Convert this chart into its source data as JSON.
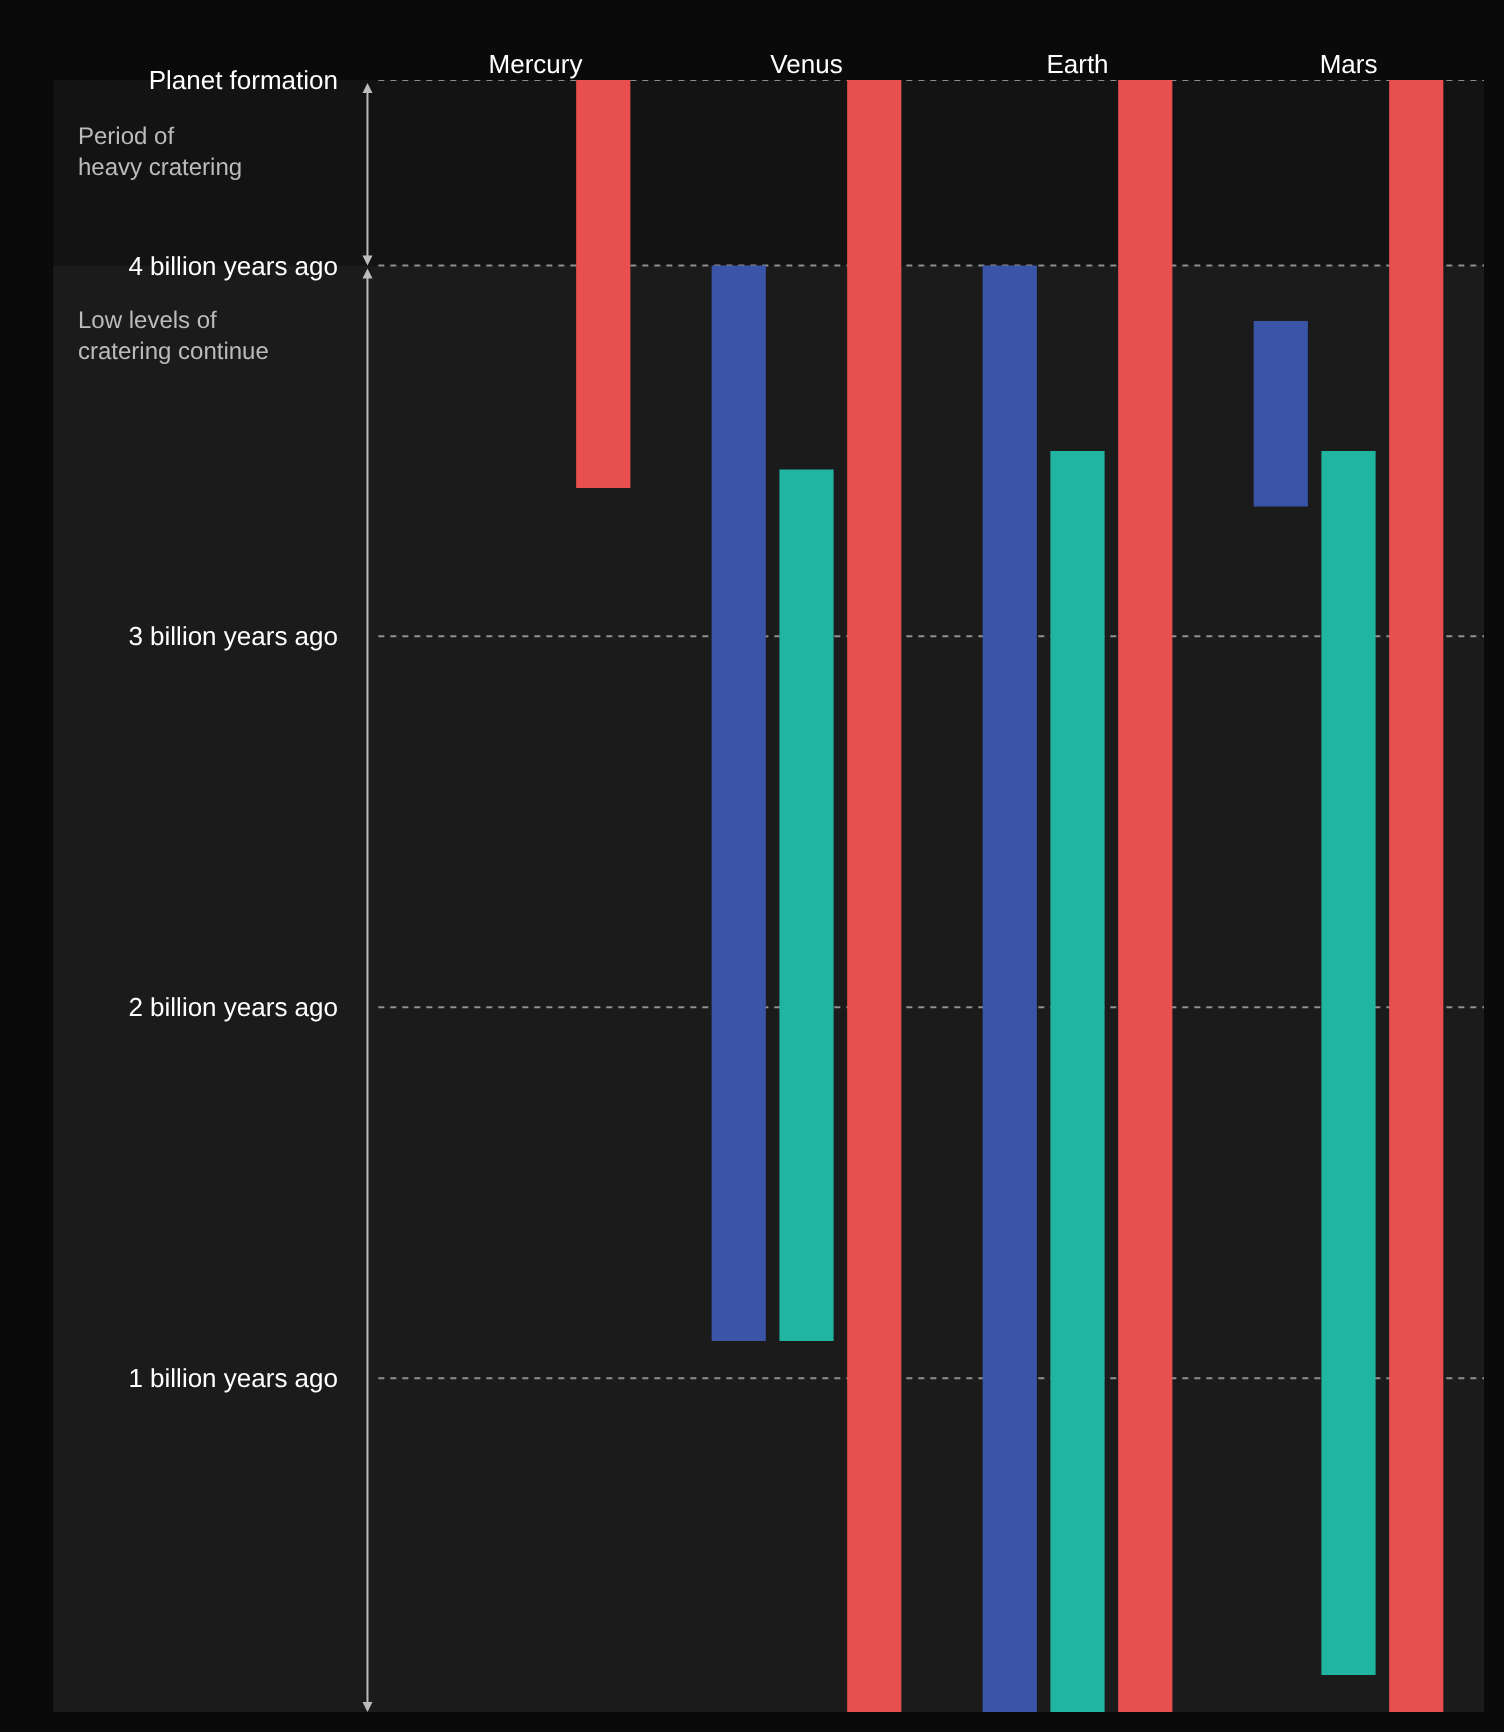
{
  "chart_data": {
    "type": "bar",
    "categories": [
      "Mercury",
      "Venus",
      "Earth",
      "Mars"
    ],
    "series": [
      {
        "color": "#3a54a8",
        "values": [
          null,
          2.9,
          3.9,
          0.5
        ],
        "base": [
          null,
          1.1,
          0.1,
          3.35
        ]
      },
      {
        "color": "#1fb5a0",
        "values": [
          null,
          2.35,
          3.4,
          3.3
        ],
        "base": [
          null,
          1.1,
          0.1,
          0.2
        ]
      },
      {
        "color": "#e8504f",
        "values": [
          1.1,
          4.4,
          4.4,
          4.4
        ],
        "base": [
          3.4,
          0.1,
          0.1,
          0.1
        ]
      }
    ],
    "ylim": [
      0.1,
      4.5
    ],
    "yticks": [
      {
        "value": 4.5,
        "label": "Planet formation"
      },
      {
        "value": 4,
        "label": "4 billion years ago"
      },
      {
        "value": 3,
        "label": "3 billion years ago"
      },
      {
        "value": 2,
        "label": "2 billion years ago"
      },
      {
        "value": 1,
        "label": "1 billion years ago"
      }
    ],
    "grid": "y",
    "line_style": "dotted",
    "bands": [
      {
        "axis": "y",
        "from": 4.5,
        "to": 4,
        "label": "Period of heavy cratering"
      },
      {
        "axis": "y",
        "from": 4,
        "to": 0.1,
        "label": "Low levels of cratering continue"
      }
    ]
  }
}
